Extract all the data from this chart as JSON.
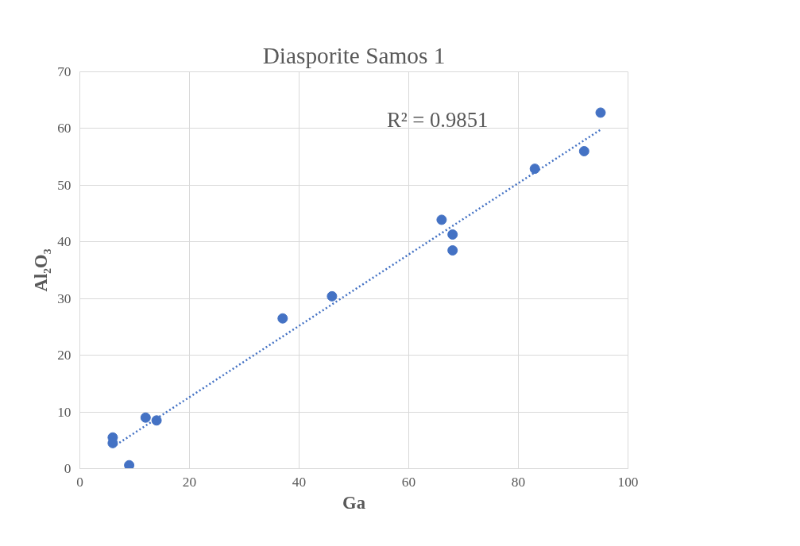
{
  "chart_data": {
    "type": "scatter",
    "title": "Diasporite Samos 1",
    "xlabel": "Ga",
    "ylabel": "Al₂O₃",
    "xlim": [
      0,
      100
    ],
    "xticks": [
      0,
      20,
      40,
      60,
      80,
      100
    ],
    "ylim": [
      0,
      70
    ],
    "yticks": [
      0,
      10,
      20,
      30,
      40,
      50,
      60,
      70
    ],
    "grid": true,
    "series": [
      {
        "marker": "circle",
        "color": "#4472c4",
        "x": [
          6,
          6,
          9,
          12,
          14,
          37,
          46,
          66,
          68,
          68,
          83,
          92,
          95
        ],
        "values": [
          5.5,
          4.5,
          0.6,
          9,
          8.5,
          26.5,
          30.4,
          43.9,
          41.3,
          38.5,
          52.9,
          56,
          62.8
        ]
      },
      {
        "type": "line",
        "color": "#4472c4",
        "line_style": "dotted",
        "x": [
          6,
          95
        ],
        "values": [
          3.8,
          59.8
        ]
      }
    ],
    "annotations": [
      "R² = 0.9851"
    ]
  }
}
